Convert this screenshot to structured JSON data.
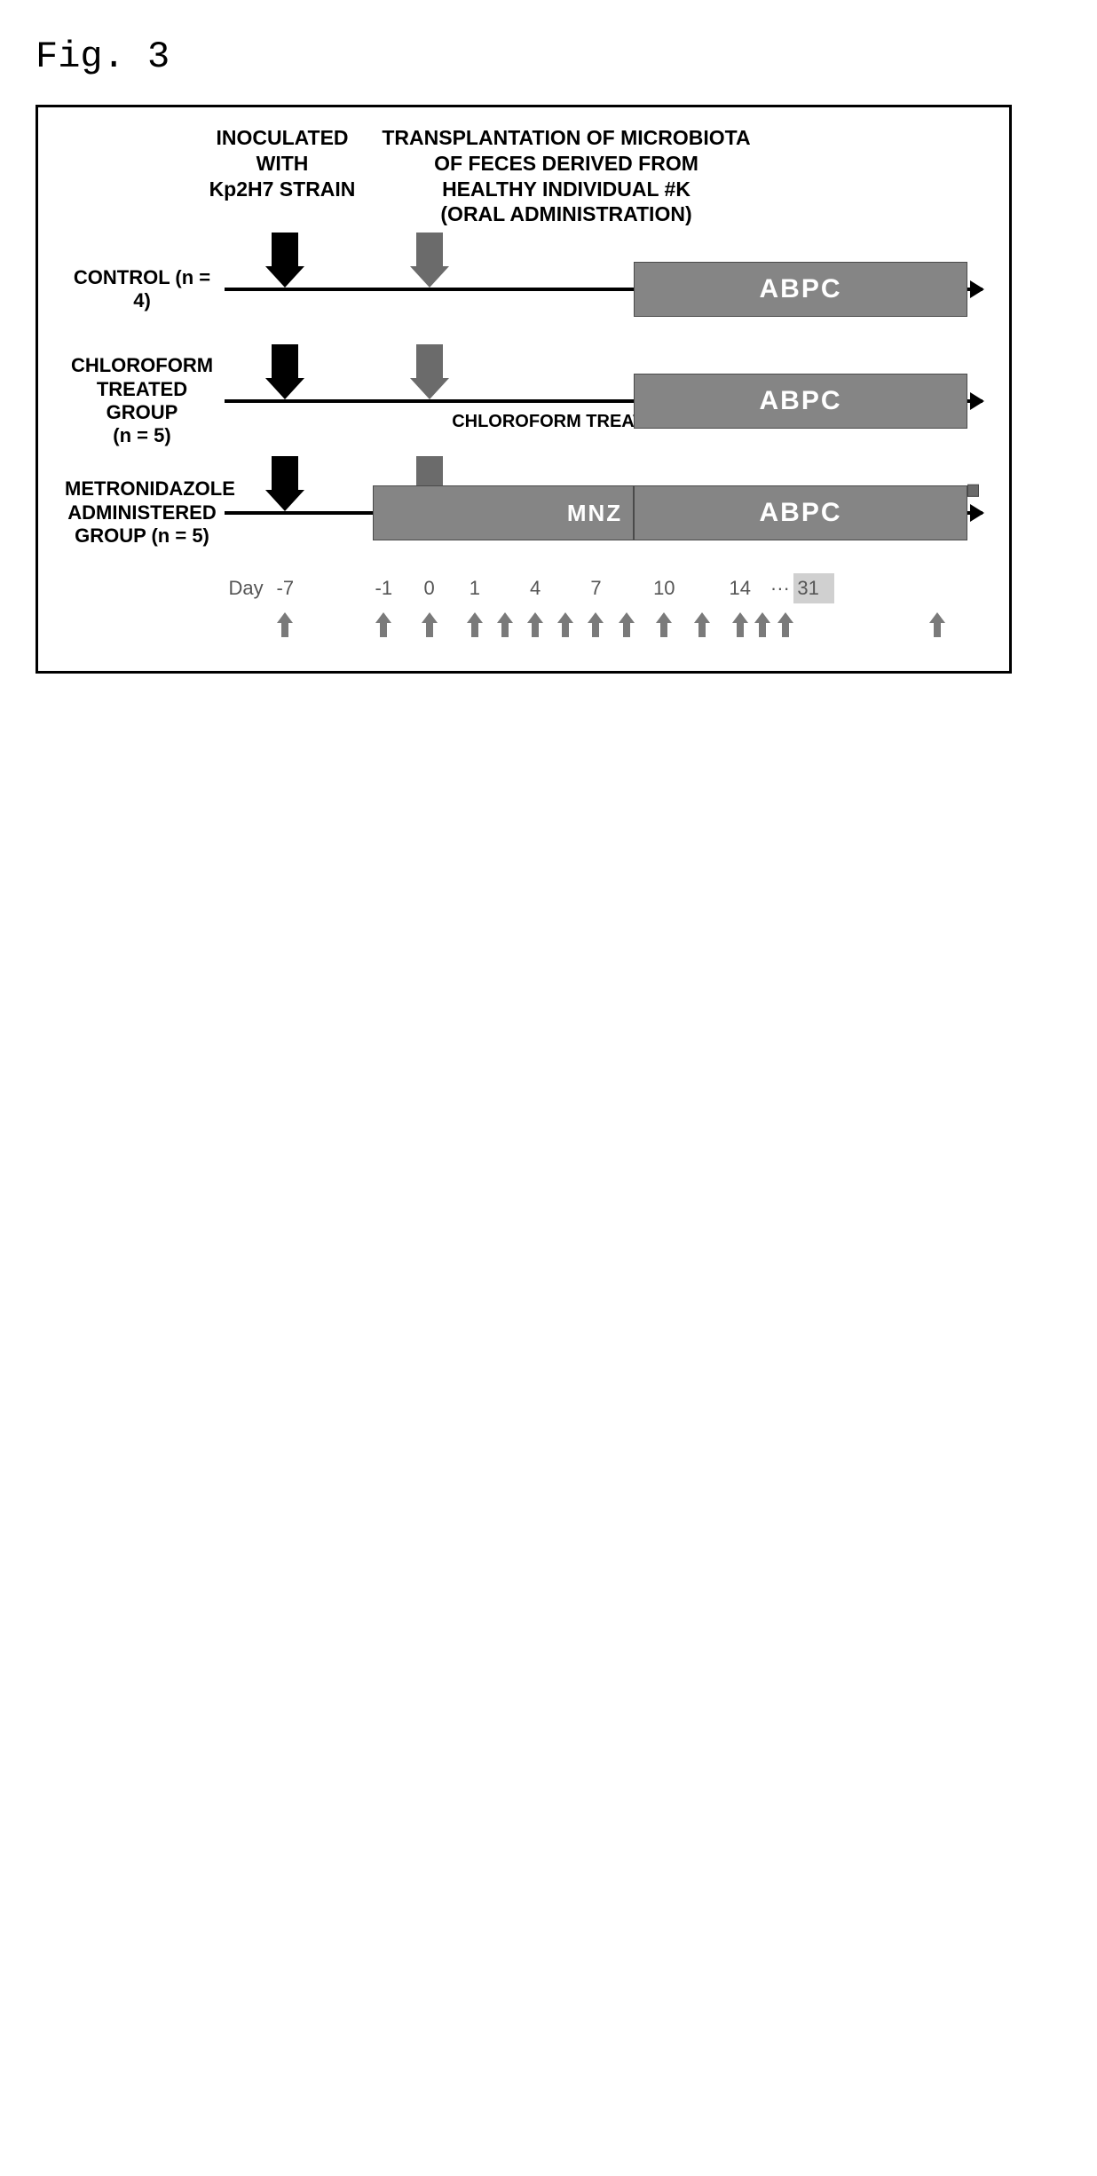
{
  "figure_label": "Fig. 3",
  "header": {
    "inoculate": "INOCULATED\nWITH\nKp2H7 STRAIN",
    "transplant": "TRANSPLANTATION OF MICROBIOTA\nOF FECES DERIVED FROM\nHEALTHY INDIVIDUAL #K\n(ORAL ADMINISTRATION)"
  },
  "groups": [
    {
      "label": "CONTROL (n = 4)"
    },
    {
      "label": "CHLOROFORM\nTREATED GROUP\n(n = 5)",
      "sublabel": "CHLOROFORM TREATED PRODUCT"
    },
    {
      "label": "METRONIDAZOLE\nADMINISTERED\nGROUP (n = 5)"
    }
  ],
  "bars": {
    "abpc_label": "ABPC",
    "mnz_label": "MNZ",
    "abpc_font_size": 30,
    "mnz_font_size": 26,
    "abpc_start_pct": 54,
    "abpc_end_pct": 98,
    "mnz_start_pct": 19.5,
    "mnz_end_pct": 54,
    "thin_tail_end_pct": 99.5,
    "bar_color": "#858585",
    "bar_text_color": "#ffffff"
  },
  "arrows": {
    "inoculate_pos_pct": 8,
    "transplant_pos_pct": 27,
    "black": "#000000",
    "gray": "#6b6b6b"
  },
  "timeline": {
    "prefix": "Day",
    "points": [
      {
        "label": "-7",
        "pos_pct": 8
      },
      {
        "label": "-1",
        "pos_pct": 21
      },
      {
        "label": "0",
        "pos_pct": 27
      },
      {
        "label": "1",
        "pos_pct": 33
      },
      {
        "label": "",
        "pos_pct": 37
      },
      {
        "label": "4",
        "pos_pct": 41
      },
      {
        "label": "",
        "pos_pct": 45
      },
      {
        "label": "7",
        "pos_pct": 49
      },
      {
        "label": "",
        "pos_pct": 53
      },
      {
        "label": "10",
        "pos_pct": 58
      },
      {
        "label": "",
        "pos_pct": 63
      },
      {
        "label": "14",
        "pos_pct": 68
      },
      {
        "label": "",
        "pos_pct": 71
      },
      {
        "label": "",
        "pos_pct": 74
      },
      {
        "label": "",
        "pos_pct": 94
      }
    ],
    "ellipsis": "···",
    "ellipsis_pos_pct": 72,
    "highlight_label": "31",
    "highlight_pos_pct": 77,
    "small_arrow_color": "#7a7a7a",
    "day_label_color": "#555555"
  },
  "style": {
    "font_family": "Arial, sans-serif",
    "border_color": "#000000",
    "background": "#ffffff"
  }
}
